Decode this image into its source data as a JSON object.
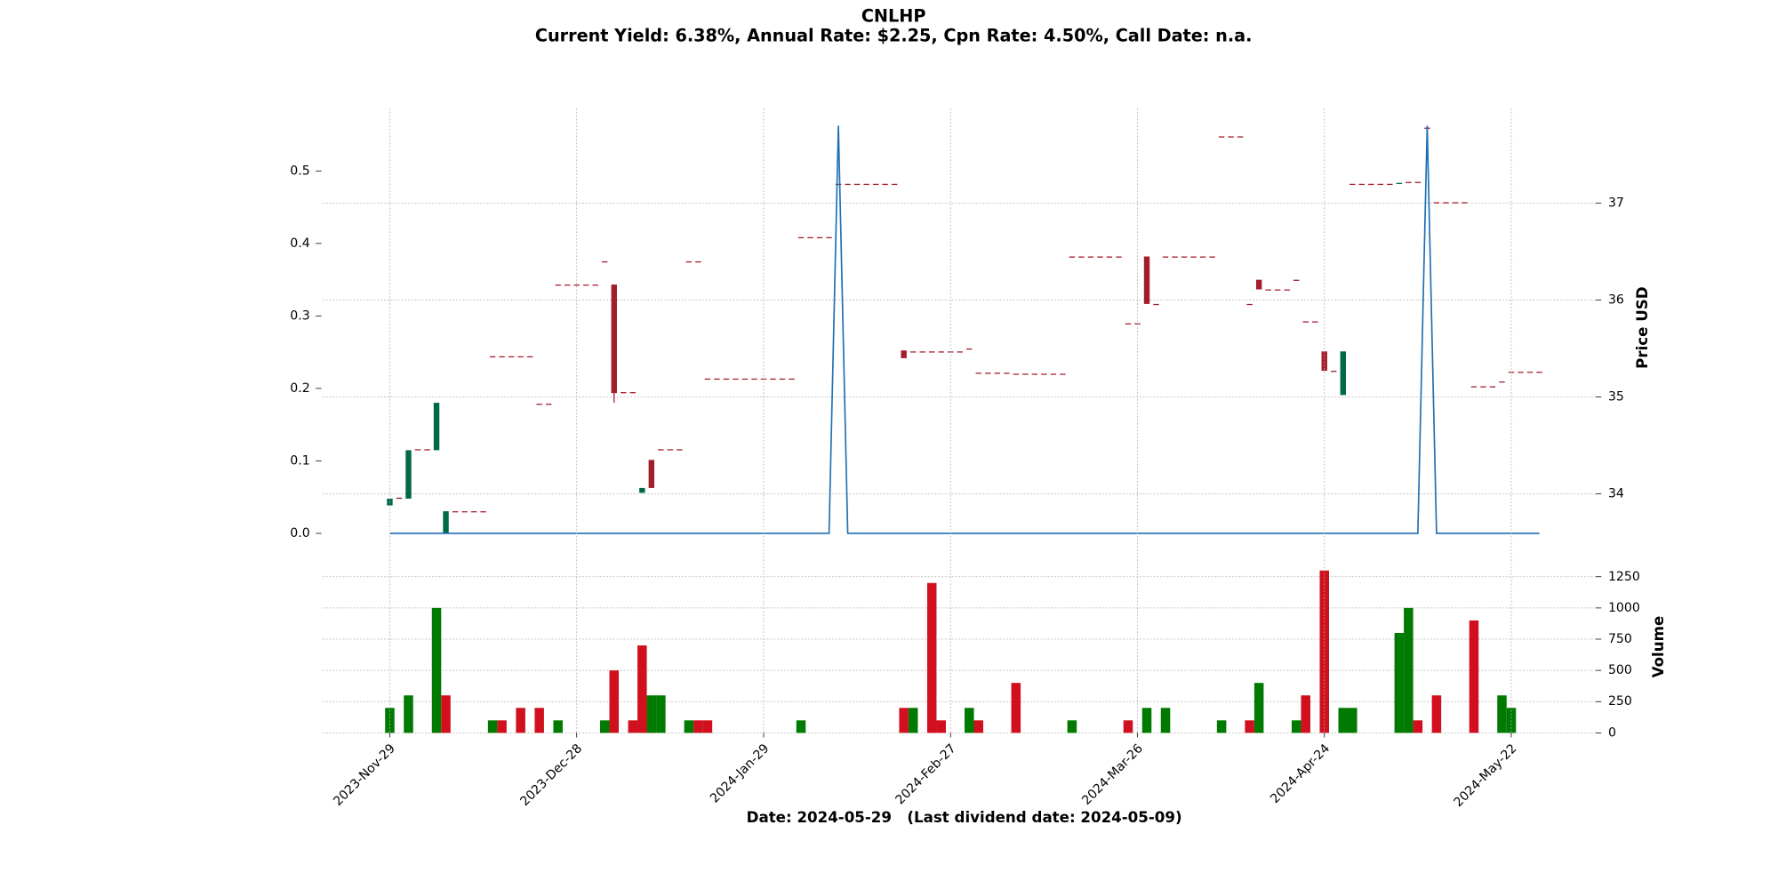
{
  "chart_data": [
    {
      "type": "candlestick",
      "title": "CNLHP",
      "subtitle": "Current Yield: 6.38%, Annual Rate: $2.25, Cpn Rate: 4.50%, Call Date: n.a.",
      "y2label": "Price USD",
      "up_color": "#00694a",
      "down_color": "#a31e2b",
      "grid": true,
      "ylim": [
        -0.0189,
        0.5865
      ],
      "yticks": [
        {
          "value": 0,
          "label": "0.0"
        },
        0.1,
        0.2,
        0.3,
        0.4,
        0.5
      ],
      "y2lim": [
        33.45,
        37.98
      ],
      "y2ticks": [
        34,
        35,
        36,
        37
      ],
      "open": [
        33.88,
        33.96,
        33.95,
        34.46,
        34.46,
        34.45,
        33.59,
        33.82,
        33.82,
        33.82,
        33.82,
        35.42,
        35.42,
        35.42,
        35.42,
        35.42,
        34.93,
        34.93,
        36.16,
        36.16,
        36.16,
        36.16,
        36.16,
        36.4,
        36.16,
        35.05,
        35.05,
        34.01,
        34.35,
        34.46,
        34.46,
        34.46,
        36.4,
        36.4,
        35.19,
        35.19,
        35.19,
        35.19,
        35.19,
        35.19,
        35.19,
        35.19,
        35.19,
        35.19,
        36.65,
        36.65,
        36.65,
        36.65,
        37.2,
        37.2,
        37.2,
        37.2,
        37.2,
        37.2,
        37.2,
        35.48,
        35.47,
        35.47,
        35.47,
        35.47,
        35.47,
        35.47,
        35.5,
        35.25,
        35.25,
        35.25,
        35.25,
        35.24,
        35.24,
        35.24,
        35.24,
        35.24,
        35.24,
        36.45,
        36.45,
        36.45,
        36.45,
        36.45,
        36.45,
        35.76,
        35.76,
        36.45,
        35.96,
        36.45,
        36.45,
        36.45,
        36.45,
        36.45,
        36.45,
        37.69,
        37.69,
        37.69,
        35.96,
        36.21,
        36.11,
        36.11,
        36.11,
        36.21,
        35.78,
        35.78,
        35.47,
        35.27,
        35.02,
        37.2,
        37.2,
        37.2,
        37.2,
        37.2,
        37.2,
        37.22,
        37.22,
        37.78,
        37.01,
        37.01,
        37.01,
        37.01,
        35.11,
        35.11,
        35.11,
        35.16,
        35.26,
        35.26,
        35.26,
        35.26
      ],
      "high": [
        33.95,
        33.96,
        34.45,
        34.46,
        34.46,
        34.94,
        33.82,
        33.82,
        33.82,
        33.82,
        33.82,
        35.42,
        35.42,
        35.42,
        35.42,
        35.42,
        34.93,
        34.93,
        36.16,
        36.16,
        36.16,
        36.16,
        36.16,
        36.4,
        36.16,
        35.05,
        35.05,
        34.06,
        34.35,
        34.46,
        34.46,
        34.46,
        36.4,
        36.4,
        35.19,
        35.19,
        35.19,
        35.19,
        35.19,
        35.19,
        35.19,
        35.19,
        35.19,
        35.19,
        36.65,
        36.65,
        36.65,
        36.65,
        37.2,
        37.2,
        37.2,
        37.2,
        37.2,
        37.2,
        37.2,
        35.48,
        35.47,
        35.47,
        35.47,
        35.47,
        35.47,
        35.47,
        35.5,
        35.25,
        35.25,
        35.25,
        35.25,
        35.24,
        35.24,
        35.24,
        35.24,
        35.24,
        35.24,
        36.45,
        36.45,
        36.45,
        36.45,
        36.45,
        36.45,
        35.76,
        35.76,
        36.45,
        35.96,
        36.45,
        36.45,
        36.45,
        36.45,
        36.45,
        36.45,
        37.69,
        37.69,
        37.69,
        35.96,
        36.21,
        36.11,
        36.11,
        36.11,
        36.21,
        35.78,
        35.78,
        35.47,
        35.27,
        35.47,
        37.2,
        37.2,
        37.2,
        37.2,
        37.2,
        37.21,
        37.22,
        37.22,
        37.78,
        37.01,
        37.01,
        37.01,
        37.01,
        35.11,
        35.11,
        35.11,
        35.16,
        35.26,
        35.26,
        35.26,
        35.26
      ],
      "low": [
        33.88,
        33.96,
        33.95,
        34.46,
        34.46,
        34.45,
        33.59,
        33.82,
        33.82,
        33.82,
        33.82,
        35.42,
        35.42,
        35.42,
        35.42,
        35.42,
        34.93,
        34.93,
        36.16,
        36.16,
        36.16,
        36.16,
        36.16,
        36.4,
        34.94,
        35.05,
        35.05,
        34.01,
        34.06,
        34.46,
        34.46,
        34.46,
        36.4,
        36.4,
        35.19,
        35.19,
        35.19,
        35.19,
        35.19,
        35.19,
        35.19,
        35.19,
        35.19,
        35.19,
        36.65,
        36.65,
        36.65,
        36.65,
        37.2,
        37.2,
        37.2,
        37.2,
        37.2,
        37.2,
        37.2,
        35.4,
        35.47,
        35.47,
        35.47,
        35.47,
        35.47,
        35.47,
        35.5,
        35.25,
        35.25,
        35.25,
        35.25,
        35.24,
        35.24,
        35.24,
        35.24,
        35.24,
        35.24,
        36.45,
        36.45,
        36.45,
        36.45,
        36.45,
        36.45,
        35.76,
        35.76,
        35.96,
        35.96,
        36.45,
        36.45,
        36.45,
        36.45,
        36.45,
        36.45,
        37.69,
        37.69,
        37.69,
        35.96,
        36.11,
        36.11,
        36.11,
        36.11,
        36.21,
        35.78,
        35.78,
        35.27,
        35.27,
        35.02,
        37.2,
        37.2,
        37.2,
        37.2,
        37.2,
        37.2,
        37.22,
        37.22,
        37.78,
        37.01,
        37.01,
        37.01,
        37.01,
        35.11,
        35.11,
        35.11,
        35.16,
        35.26,
        35.26,
        35.26,
        35.26
      ],
      "close": [
        33.95,
        33.96,
        34.45,
        34.46,
        34.46,
        34.94,
        33.82,
        33.82,
        33.82,
        33.82,
        33.82,
        35.42,
        35.42,
        35.42,
        35.42,
        35.42,
        34.93,
        34.93,
        36.16,
        36.16,
        36.16,
        36.16,
        36.16,
        36.4,
        35.04,
        35.05,
        35.05,
        34.06,
        34.06,
        34.46,
        34.46,
        34.46,
        36.4,
        36.4,
        35.19,
        35.19,
        35.19,
        35.19,
        35.19,
        35.19,
        35.19,
        35.19,
        35.19,
        35.19,
        36.65,
        36.65,
        36.65,
        36.65,
        37.2,
        37.2,
        37.2,
        37.2,
        37.2,
        37.2,
        37.2,
        35.4,
        35.47,
        35.47,
        35.47,
        35.47,
        35.47,
        35.47,
        35.5,
        35.25,
        35.25,
        35.25,
        35.25,
        35.24,
        35.24,
        35.24,
        35.24,
        35.24,
        35.24,
        36.45,
        36.45,
        36.45,
        36.45,
        36.45,
        36.45,
        35.76,
        35.76,
        35.96,
        35.96,
        36.45,
        36.45,
        36.45,
        36.45,
        36.45,
        36.45,
        37.69,
        37.69,
        37.69,
        35.96,
        36.11,
        36.11,
        36.11,
        36.11,
        36.21,
        35.78,
        35.78,
        35.27,
        35.27,
        35.47,
        37.2,
        37.2,
        37.2,
        37.2,
        37.2,
        37.21,
        37.22,
        37.22,
        37.78,
        37.01,
        37.01,
        37.01,
        37.01,
        35.11,
        35.11,
        35.11,
        35.16,
        35.26,
        35.26,
        35.26,
        35.26
      ],
      "series": [
        {
          "type": "line",
          "color": "#1f6fb2",
          "values": [
            0,
            0,
            0,
            0,
            0,
            0,
            0,
            0,
            0,
            0,
            0,
            0,
            0,
            0,
            0,
            0,
            0,
            0,
            0,
            0,
            0,
            0,
            0,
            0,
            0,
            0,
            0,
            0,
            0,
            0,
            0,
            0,
            0,
            0,
            0,
            0,
            0,
            0,
            0,
            0,
            0,
            0,
            0,
            0,
            0,
            0,
            0,
            0,
            0.5625,
            0,
            0,
            0,
            0,
            0,
            0,
            0,
            0,
            0,
            0,
            0,
            0,
            0,
            0,
            0,
            0,
            0,
            0,
            0,
            0,
            0,
            0,
            0,
            0,
            0,
            0,
            0,
            0,
            0,
            0,
            0,
            0,
            0,
            0,
            0,
            0,
            0,
            0,
            0,
            0,
            0,
            0,
            0,
            0,
            0,
            0,
            0,
            0,
            0,
            0,
            0,
            0,
            0,
            0,
            0,
            0,
            0,
            0,
            0,
            0,
            0,
            0,
            0.5625,
            0,
            0,
            0,
            0,
            0,
            0,
            0,
            0,
            0,
            0,
            0,
            0
          ]
        }
      ]
    },
    {
      "type": "bar",
      "xlabel": "Date: 2024-05-29   (Last dividend date: 2024-05-09)",
      "ylabel": "Volume",
      "yaxis_position": "right",
      "grid": true,
      "ylim": [
        0,
        1378
      ],
      "yticks": [
        0,
        250,
        500,
        750,
        1000,
        1250
      ],
      "categories": [
        "2023-Nov-29",
        null,
        null,
        null,
        null,
        null,
        null,
        null,
        null,
        null,
        null,
        null,
        null,
        null,
        null,
        null,
        null,
        null,
        null,
        null,
        "2023-Dec-28",
        null,
        null,
        null,
        null,
        null,
        null,
        null,
        null,
        null,
        null,
        null,
        null,
        null,
        null,
        null,
        null,
        null,
        null,
        null,
        "2024-Jan-29",
        null,
        null,
        null,
        null,
        null,
        null,
        null,
        null,
        null,
        null,
        null,
        null,
        null,
        null,
        null,
        null,
        null,
        null,
        null,
        "2024-Feb-27",
        null,
        null,
        null,
        null,
        null,
        null,
        null,
        null,
        null,
        null,
        null,
        null,
        null,
        null,
        null,
        null,
        null,
        null,
        null,
        "2024-Mar-26",
        null,
        null,
        null,
        null,
        null,
        null,
        null,
        null,
        null,
        null,
        null,
        null,
        null,
        null,
        null,
        null,
        null,
        null,
        null,
        "2024-Apr-24",
        null,
        null,
        null,
        null,
        null,
        null,
        null,
        null,
        null,
        null,
        null,
        null,
        null,
        null,
        null,
        null,
        null,
        null,
        null,
        "2024-May-22",
        null,
        null,
        null
      ],
      "series": [
        {
          "color": "#007a00",
          "values": [
            200,
            null,
            300,
            null,
            null,
            1000,
            null,
            null,
            null,
            null,
            null,
            100,
            null,
            null,
            null,
            null,
            null,
            null,
            100,
            null,
            null,
            null,
            null,
            100,
            null,
            null,
            null,
            null,
            300,
            300,
            null,
            null,
            100,
            null,
            null,
            null,
            null,
            null,
            null,
            null,
            null,
            null,
            null,
            null,
            100,
            null,
            null,
            null,
            null,
            null,
            null,
            null,
            null,
            null,
            null,
            null,
            200,
            null,
            null,
            null,
            null,
            null,
            200,
            null,
            null,
            null,
            null,
            null,
            null,
            null,
            null,
            null,
            null,
            100,
            null,
            null,
            null,
            null,
            null,
            null,
            null,
            200,
            null,
            200,
            null,
            null,
            null,
            null,
            null,
            100,
            null,
            null,
            null,
            400,
            null,
            null,
            null,
            100,
            null,
            null,
            null,
            null,
            200,
            200,
            null,
            null,
            null,
            null,
            800,
            1000,
            null,
            null,
            null,
            null,
            null,
            null,
            null,
            null,
            null,
            300,
            200,
            null,
            null,
            null
          ]
        },
        {
          "color": "#d0101f",
          "values": [
            null,
            null,
            null,
            null,
            null,
            null,
            300,
            null,
            null,
            null,
            null,
            null,
            100,
            null,
            200,
            null,
            200,
            null,
            null,
            null,
            null,
            null,
            null,
            null,
            500,
            null,
            100,
            700,
            null,
            null,
            null,
            null,
            null,
            100,
            100,
            null,
            null,
            null,
            null,
            null,
            null,
            null,
            null,
            null,
            null,
            null,
            null,
            null,
            null,
            null,
            null,
            null,
            null,
            null,
            null,
            200,
            null,
            null,
            1200,
            100,
            null,
            null,
            null,
            100,
            null,
            null,
            null,
            400,
            null,
            null,
            null,
            null,
            null,
            null,
            null,
            null,
            null,
            null,
            null,
            100,
            null,
            null,
            null,
            null,
            null,
            null,
            null,
            null,
            null,
            null,
            null,
            null,
            100,
            null,
            null,
            null,
            null,
            null,
            300,
            null,
            1300,
            null,
            null,
            null,
            null,
            null,
            null,
            null,
            null,
            null,
            100,
            null,
            300,
            null,
            null,
            null,
            900,
            null,
            null,
            null,
            null,
            null,
            null,
            null
          ]
        }
      ]
    }
  ]
}
